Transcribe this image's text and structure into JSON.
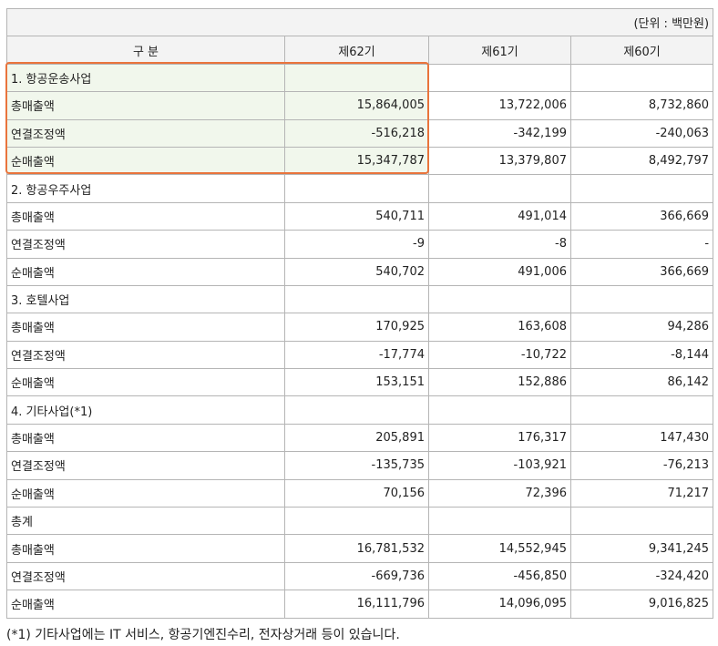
{
  "unit": "(단위 : 백만원)",
  "header": [
    "구 분",
    "제62기",
    "제61기",
    "제60기"
  ],
  "rows": [
    [
      "1. 항공운송사업"
    ],
    [
      "총매출액",
      "15,864,005",
      "13,722,006",
      "8,732,860"
    ],
    [
      "연결조정액",
      "-516,218",
      "-342,199",
      "-240,063"
    ],
    [
      "순매출액",
      "15,347,787",
      "13,379,807",
      "8,492,797"
    ],
    [
      "2. 항공우주사업"
    ],
    [
      "총매출액",
      "540,711",
      "491,014",
      "366,669"
    ],
    [
      "연결조정액",
      "-9",
      "-8",
      "-"
    ],
    [
      "순매출액",
      "540,702",
      "491,006",
      "366,669"
    ],
    [
      "3. 호텔사업"
    ],
    [
      "총매출액",
      "170,925",
      "163,608",
      "94,286"
    ],
    [
      "연결조정액",
      "-17,774",
      "-10,722",
      "-8,144"
    ],
    [
      "순매출액",
      "153,151",
      "152,886",
      "86,142"
    ],
    [
      "4. 기타사업(*1)"
    ],
    [
      "총매출액",
      "205,891",
      "176,317",
      "147,430"
    ],
    [
      "연결조정액",
      "-135,735",
      "-103,921",
      "-76,213"
    ],
    [
      "순매출액",
      "70,156",
      "72,396",
      "71,217"
    ],
    [
      "총계"
    ],
    [
      "총매출액",
      "16,781,532",
      "14,552,945",
      "9,341,245"
    ],
    [
      "연결조정액",
      "-669,736",
      "-456,850",
      "-324,420"
    ],
    [
      "순매출액",
      "16,111,796",
      "14,096,095",
      "9,016,825"
    ]
  ],
  "footnote": "(*1) 기타사업에는 IT 서비스, 항공기엔진수리, 전자상거래 등이 있습니다."
}
